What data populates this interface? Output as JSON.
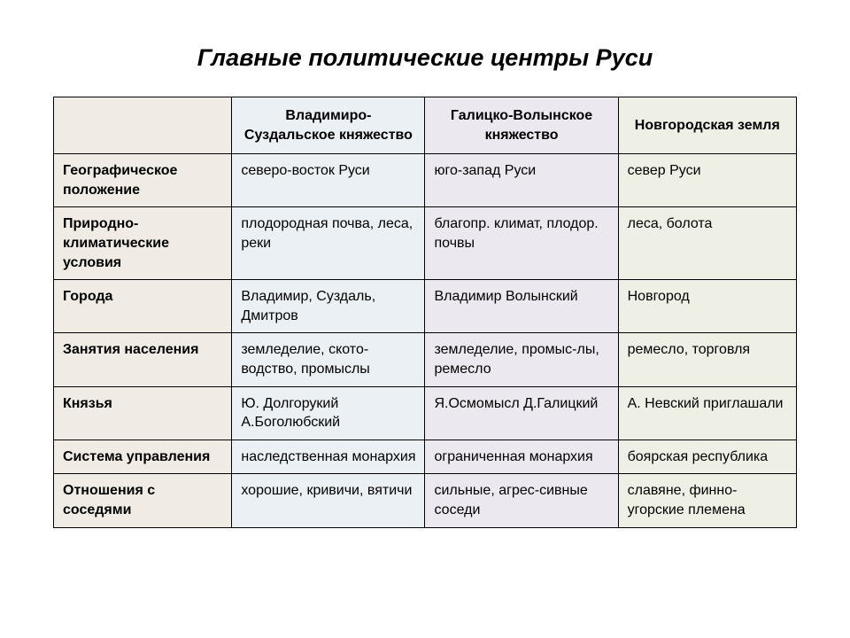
{
  "title": "Главные политические центры Руси",
  "table": {
    "column_colors": {
      "row_header": "#f0ece5",
      "col1": "#eaf0f4",
      "col2": "#ebe8f0",
      "col3": "#eff0e5"
    },
    "border_color": "#000000",
    "font_family": "Arial",
    "title_fontsize": 27,
    "cell_fontsize": 16,
    "col_widths_pct": [
      24,
      26,
      26,
      24
    ],
    "columns": [
      "",
      "Владимиро-Суздальское княжество",
      "Галицко-Волынское княжество",
      "Новгородская земля"
    ],
    "rows": [
      {
        "label": "Географическое положение",
        "cells": [
          "северо-восток Руси",
          "юго-запад Руси",
          "север Руси"
        ]
      },
      {
        "label": "Природно-климатические условия",
        "cells": [
          "плодородная почва, леса, реки",
          "благопр. климат, плодор. почвы",
          "леса, болота"
        ]
      },
      {
        "label": "Города",
        "cells": [
          "Владимир, Суздаль, Дмитров",
          "Владимир Волынский",
          "Новгород"
        ]
      },
      {
        "label": "Занятия населения",
        "cells": [
          "земледелие, ското-водство, промыслы",
          "земледелие, промыс-лы, ремесло",
          "ремесло, торговля"
        ]
      },
      {
        "label": "Князья",
        "cells": [
          "Ю. Долгорукий А.Боголюбский",
          "Я.Осмомысл Д.Галицкий",
          "А. Невский приглашали"
        ]
      },
      {
        "label": "Система управления",
        "cells": [
          "наследственная монархия",
          "ограниченная монархия",
          "боярская республика"
        ]
      },
      {
        "label": "Отношения с соседями",
        "cells": [
          "хорошие, кривичи, вятичи",
          "сильные, агрес-сивные соседи",
          "славяне, финно-угорские племена"
        ]
      }
    ]
  }
}
